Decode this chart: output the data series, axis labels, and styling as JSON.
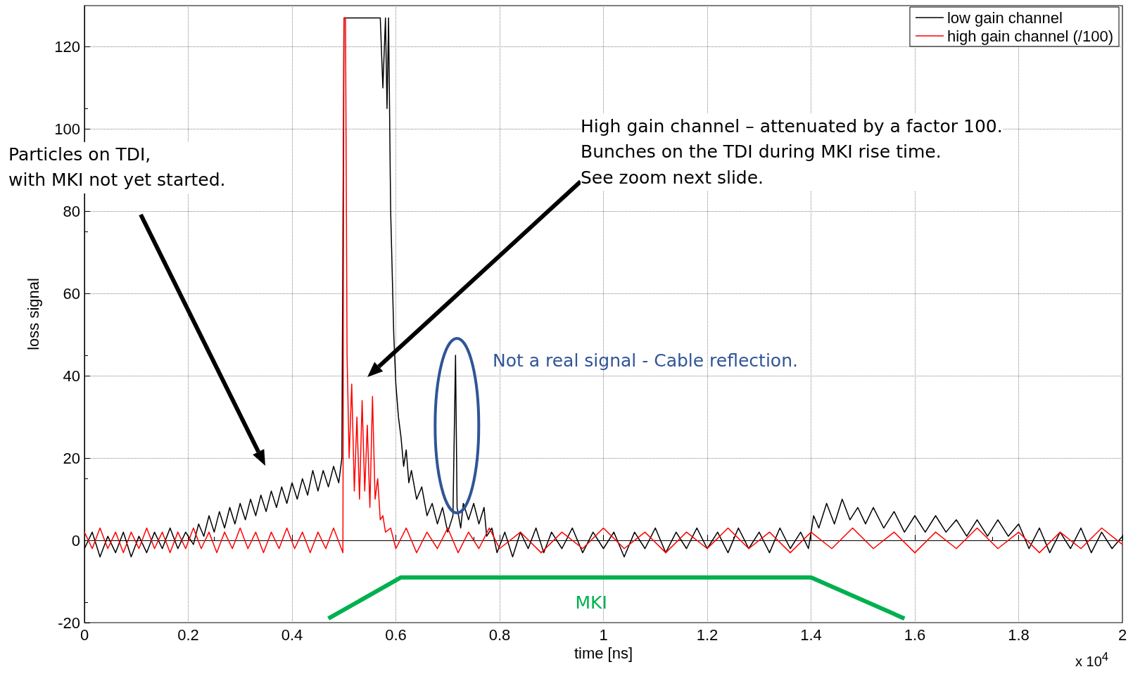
{
  "chart_data": {
    "type": "line",
    "xlabel": "time [ns]",
    "ylabel": "loss signal",
    "xlim": [
      0,
      2
    ],
    "ylim": [
      -20,
      130
    ],
    "xticks": [
      0,
      0.2,
      0.4,
      0.6,
      0.8,
      1,
      1.2,
      1.4,
      1.6,
      1.8,
      2
    ],
    "yticks": [
      -20,
      0,
      20,
      40,
      60,
      80,
      100,
      120
    ],
    "grid": true,
    "legend": "top right",
    "marker": "none",
    "line_style": "solid",
    "series": [
      {
        "name": "low gain channel",
        "color": "#000000",
        "x": [
          0,
          0.015,
          0.03,
          0.045,
          0.06,
          0.075,
          0.09,
          0.105,
          0.12,
          0.135,
          0.15,
          0.165,
          0.18,
          0.195,
          0.21,
          0.22,
          0.23,
          0.24,
          0.25,
          0.26,
          0.27,
          0.28,
          0.29,
          0.3,
          0.31,
          0.32,
          0.33,
          0.34,
          0.35,
          0.36,
          0.37,
          0.38,
          0.39,
          0.4,
          0.41,
          0.42,
          0.43,
          0.44,
          0.45,
          0.46,
          0.47,
          0.48,
          0.49,
          0.496,
          0.5,
          0.57,
          0.575,
          0.58,
          0.583,
          0.586,
          0.59,
          0.596,
          0.6,
          0.605,
          0.61,
          0.615,
          0.62,
          0.625,
          0.63,
          0.64,
          0.65,
          0.66,
          0.67,
          0.68,
          0.69,
          0.7,
          0.71,
          0.715,
          0.718,
          0.725,
          0.73,
          0.74,
          0.75,
          0.76,
          0.77,
          0.775,
          0.785,
          0.795,
          0.81,
          0.825,
          0.84,
          0.855,
          0.87,
          0.885,
          0.9,
          0.92,
          0.94,
          0.96,
          0.98,
          1,
          1.02,
          1.04,
          1.06,
          1.08,
          1.1,
          1.12,
          1.14,
          1.16,
          1.18,
          1.2,
          1.22,
          1.24,
          1.26,
          1.28,
          1.3,
          1.32,
          1.34,
          1.36,
          1.38,
          1.395,
          1.405,
          1.415,
          1.43,
          1.445,
          1.46,
          1.475,
          1.49,
          1.505,
          1.52,
          1.54,
          1.56,
          1.58,
          1.6,
          1.62,
          1.64,
          1.66,
          1.68,
          1.7,
          1.72,
          1.74,
          1.76,
          1.78,
          1.8,
          1.82,
          1.84,
          1.86,
          1.88,
          1.9,
          1.92,
          1.94,
          1.96,
          1.98,
          2
        ],
        "values": [
          -2,
          2,
          -4,
          1,
          -3,
          2,
          -4,
          1,
          -3,
          2,
          -2,
          3,
          -2,
          2,
          -1,
          4,
          1,
          6,
          2,
          7,
          3,
          8,
          4,
          9,
          5,
          10,
          6,
          11,
          7,
          12,
          8,
          13,
          9,
          14,
          10,
          15,
          11,
          17,
          12,
          17,
          13,
          18,
          14,
          20,
          127,
          127,
          110,
          127,
          105,
          127,
          80,
          50,
          38,
          30,
          25,
          18,
          22,
          14,
          17,
          10,
          13,
          6,
          9,
          4,
          8,
          2,
          6,
          45,
          8,
          3,
          9,
          5,
          9,
          4,
          8,
          1,
          3,
          -3,
          2,
          -4,
          2,
          -2,
          3,
          -3,
          2,
          -2,
          3,
          -3,
          2,
          -2,
          2,
          -4,
          2,
          -2,
          3,
          -3,
          2,
          -2,
          3,
          -2,
          2,
          -3,
          3,
          -2,
          2,
          -3,
          3,
          -2,
          2,
          -2,
          6,
          3,
          9,
          4,
          10,
          5,
          8,
          4,
          8,
          3,
          7,
          2,
          6,
          2,
          6,
          2,
          5,
          1,
          5,
          1,
          5,
          1,
          4,
          -2,
          3,
          -3,
          2,
          -2,
          3,
          -3,
          2,
          -2,
          1
        ]
      },
      {
        "name": "high gain channel (/100)",
        "color": "#ff0000",
        "x": [
          0,
          0.015,
          0.03,
          0.045,
          0.06,
          0.075,
          0.09,
          0.105,
          0.12,
          0.135,
          0.15,
          0.165,
          0.18,
          0.195,
          0.21,
          0.225,
          0.24,
          0.255,
          0.27,
          0.285,
          0.3,
          0.315,
          0.33,
          0.345,
          0.36,
          0.375,
          0.39,
          0.405,
          0.42,
          0.435,
          0.45,
          0.465,
          0.48,
          0.495,
          0.498,
          0.5,
          0.503,
          0.506,
          0.51,
          0.515,
          0.52,
          0.525,
          0.53,
          0.535,
          0.54,
          0.545,
          0.55,
          0.555,
          0.56,
          0.565,
          0.57,
          0.575,
          0.58,
          0.59,
          0.6,
          0.62,
          0.64,
          0.66,
          0.68,
          0.7,
          0.72,
          0.74,
          0.76,
          0.78,
          0.8,
          0.84,
          0.88,
          0.92,
          0.96,
          1,
          1.04,
          1.08,
          1.12,
          1.16,
          1.2,
          1.24,
          1.28,
          1.32,
          1.36,
          1.4,
          1.44,
          1.48,
          1.52,
          1.56,
          1.6,
          1.64,
          1.68,
          1.72,
          1.76,
          1.8,
          1.84,
          1.88,
          1.92,
          1.96,
          2
        ],
        "values": [
          2,
          -2,
          3,
          -2,
          2,
          -3,
          2,
          -2,
          3,
          -2,
          2,
          -3,
          2,
          -2,
          3,
          -2,
          2,
          -3,
          2,
          -2,
          3,
          -2,
          2,
          -3,
          2,
          -2,
          3,
          -2,
          2,
          -3,
          2,
          -2,
          3,
          -2,
          -3,
          127,
          127,
          45,
          20,
          38,
          12,
          30,
          10,
          34,
          12,
          28,
          8,
          35,
          10,
          15,
          5,
          6,
          2,
          3,
          -2,
          3,
          -3,
          2,
          -2,
          3,
          -3,
          2,
          -2,
          3,
          -2,
          2,
          -3,
          2,
          -2,
          3,
          -2,
          2,
          -3,
          2,
          -2,
          3,
          -2,
          2,
          -3,
          2,
          -2,
          3,
          -2,
          2,
          -3,
          2,
          -2,
          3,
          -2,
          2,
          -3,
          2,
          -2,
          3,
          -1
        ]
      },
      {
        "color": "#00b050",
        "x": [
          0.47,
          0.61,
          1.4,
          1.58
        ],
        "values": [
          -19,
          -9,
          -9,
          -19
        ]
      }
    ],
    "annotations": [
      "Particles on TDI,\nwith MKI not yet started.",
      "High gain channel – attenuated by a factor 100.\nBunches on the TDI during MKI rise time.\nSee zoom next slide.",
      {
        "text": "Not a real signal - Cable reflection.",
        "x": 0.715,
        "y": 45
      },
      {
        "text": "MKI",
        "x": 1,
        "y": -9
      },
      "x 10$^{4}$"
    ]
  }
}
